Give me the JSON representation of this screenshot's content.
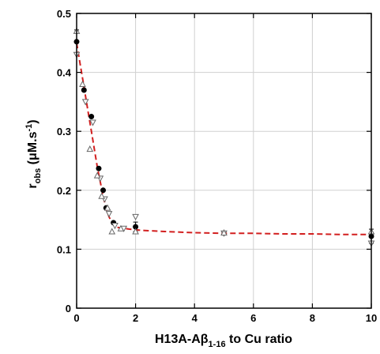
{
  "chart_data": {
    "type": "scatter",
    "title": "",
    "xlabel": {
      "main": "H13A-A",
      "beta": "β",
      "sub": "1-16",
      "rest": " to Cu ratio"
    },
    "ylabel": {
      "main": "r",
      "sub": "obs",
      "unit_open": " (μM.s",
      "sup": "-1",
      "unit_close": ")"
    },
    "xlim": [
      0,
      10
    ],
    "ylim": [
      0,
      0.5
    ],
    "xticks": [
      0,
      2,
      4,
      6,
      8,
      10
    ],
    "yticks": [
      0,
      0.1,
      0.2,
      0.3,
      0.4,
      0.5
    ],
    "xtick_labels": [
      "0",
      "2",
      "4",
      "6",
      "8",
      "10"
    ],
    "ytick_labels": [
      "0",
      "0.1",
      "0.2",
      "0.3",
      "0.4",
      "0.5"
    ],
    "grid": true,
    "colors": {
      "fit": "#d21f1f",
      "filled": "#000000",
      "open": "#666666",
      "grid": "#d0d0d0"
    },
    "series": [
      {
        "marker": "filled-circle",
        "x": [
          0,
          0.25,
          0.5,
          0.75,
          0.9,
          1.0,
          1.25,
          2.0,
          10.0
        ],
        "y": [
          0.452,
          0.37,
          0.325,
          0.237,
          0.2,
          0.17,
          0.145,
          0.138,
          0.122
        ],
        "yerr": [
          0.02,
          0,
          0,
          0,
          0,
          0,
          0,
          0.008,
          0.012
        ]
      },
      {
        "marker": "open-triangle-down",
        "x": [
          0,
          0.3,
          0.55,
          0.8,
          0.95,
          1.1,
          1.3,
          1.6,
          2.0,
          5.0,
          10.0
        ],
        "y": [
          0.43,
          0.35,
          0.315,
          0.22,
          0.185,
          0.16,
          0.14,
          0.135,
          0.155,
          0.127,
          0.11
        ],
        "yerr": []
      },
      {
        "marker": "open-triangle-up",
        "x": [
          0,
          0.2,
          0.45,
          0.7,
          0.85,
          1.05,
          1.2,
          1.5,
          2.0,
          5.0,
          10.0
        ],
        "y": [
          0.47,
          0.38,
          0.27,
          0.225,
          0.19,
          0.17,
          0.13,
          0.135,
          0.13,
          0.128,
          0.13
        ],
        "yerr": []
      }
    ],
    "fit_line": {
      "style": "dashed",
      "x": [
        0,
        0.1,
        0.2,
        0.3,
        0.4,
        0.5,
        0.6,
        0.7,
        0.8,
        0.9,
        1.0,
        1.1,
        1.2,
        1.3,
        1.5,
        1.8,
        2.2,
        3,
        4,
        5,
        6,
        7,
        8,
        9,
        10
      ],
      "y": [
        0.45,
        0.42,
        0.39,
        0.36,
        0.33,
        0.3,
        0.27,
        0.24,
        0.215,
        0.19,
        0.17,
        0.155,
        0.145,
        0.138,
        0.136,
        0.134,
        0.132,
        0.13,
        0.128,
        0.127,
        0.127,
        0.126,
        0.126,
        0.125,
        0.125
      ]
    }
  }
}
